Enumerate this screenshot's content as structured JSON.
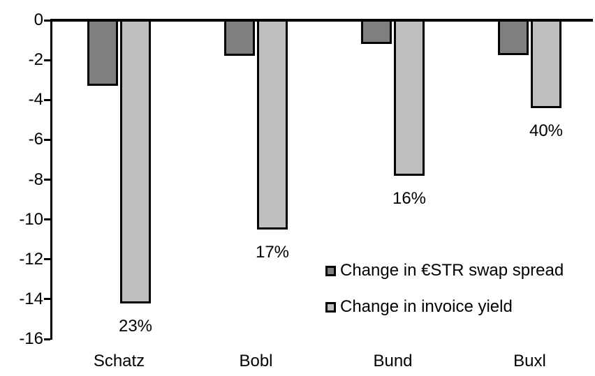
{
  "chart_data": {
    "type": "bar",
    "title": "",
    "xlabel": "",
    "ylabel": "",
    "categories": [
      "Schatz",
      "Bobl",
      "Bund",
      "Buxl"
    ],
    "series": [
      {
        "name": "Change in €STR swap spread",
        "slug": "swap-spread",
        "color": "#7f7f7f",
        "values": [
          -3.3,
          -1.8,
          -1.2,
          -1.75
        ]
      },
      {
        "name": "Change in invoice yield",
        "slug": "invoice-yield",
        "color": "#bfbfbf",
        "values": [
          -14.2,
          -10.5,
          -7.8,
          -4.4
        ],
        "bar_labels": [
          "23%",
          "17%",
          "16%",
          "40%"
        ]
      }
    ],
    "yticks": [
      "0",
      "-2",
      "-4",
      "-6",
      "-8",
      "-10",
      "-12",
      "-14",
      "-16"
    ],
    "ylim": [
      -16,
      0
    ],
    "grid": false,
    "legend_position": "inside-middle-right",
    "axis_color": "#000000",
    "bar_border_color": "#000000",
    "text_color": "#000000",
    "background": "#ffffff"
  }
}
